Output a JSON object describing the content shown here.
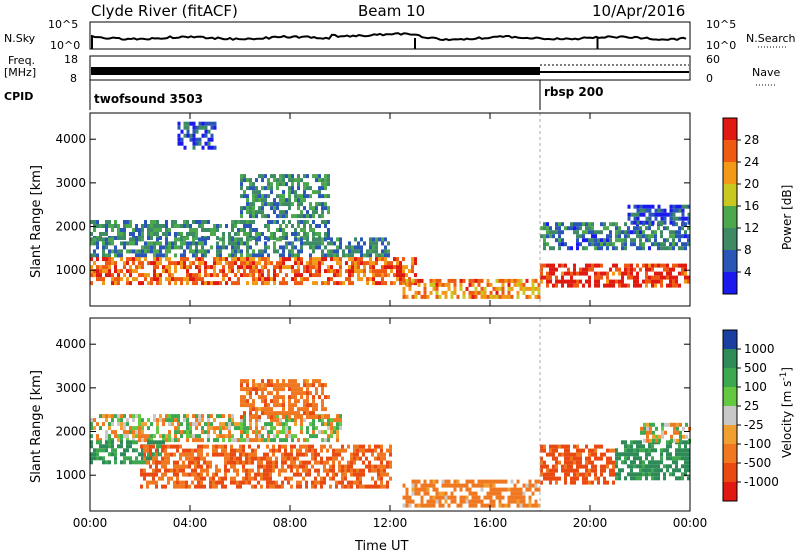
{
  "header": {
    "station": "Clyde River (fitACF)",
    "beam": "Beam 10",
    "date": "10/Apr/2016"
  },
  "top_panels": {
    "nsky_label": "N.Sky",
    "nsky_ticks": [
      "10^5",
      "10^0"
    ],
    "nsky_right_ticks": [
      "10^5",
      "10^0"
    ],
    "nsearch_label": "N.Search",
    "freq_label_line1": "Freq.",
    "freq_label_line2": "[MHz]",
    "freq_ticks": [
      "18",
      "8"
    ],
    "nave_ticks": [
      "60",
      "0"
    ],
    "nave_label": "Nave",
    "cpid_label": "CPID",
    "cpid_programs": [
      {
        "name": "twofsound 3503",
        "start_hour": 0
      },
      {
        "name": "rbsp 200",
        "start_hour": 18
      }
    ]
  },
  "colors": {
    "power_scale": [
      "#1a1aee",
      "#2a56b8",
      "#3d8a64",
      "#4ca84c",
      "#c8c820",
      "#f29a18",
      "#ee5a12",
      "#e01a10"
    ],
    "velocity_scale": [
      "#1b3fa0",
      "#2e8a56",
      "#3ea850",
      "#64c840",
      "#c8c8c8",
      "#f0a030",
      "#f07820",
      "#e84a12",
      "#e01a10"
    ]
  },
  "chart_data": [
    {
      "type": "heatmap",
      "panel": "power",
      "ylabel": "Slant Range [km]",
      "xlabel": "",
      "yticks": [
        1000,
        2000,
        3000,
        4000
      ],
      "xticks": [
        "00:00",
        "04:00",
        "08:00",
        "12:00",
        "16:00",
        "20:00",
        "00:00"
      ],
      "xlim_hours": [
        0,
        24
      ],
      "ylim": [
        180,
        4600
      ],
      "colorbar": {
        "label": "Power [dB]",
        "ticks": [
          "4",
          "8",
          "12",
          "16",
          "20",
          "24",
          "28"
        ],
        "range": [
          0,
          30
        ]
      },
      "bands": [
        {
          "t0": 0,
          "t1": 9.5,
          "r0": 1750,
          "r1": 2150,
          "value": 10
        },
        {
          "t0": 0,
          "t1": 12,
          "r0": 1300,
          "r1": 1750,
          "value": 9
        },
        {
          "t0": 0,
          "t1": 13,
          "r0": 700,
          "r1": 1300,
          "value": 24
        },
        {
          "t0": 12.5,
          "t1": 18,
          "r0": 400,
          "r1": 800,
          "value": 22
        },
        {
          "t0": 18,
          "t1": 24,
          "r0": 650,
          "r1": 1150,
          "value": 27
        },
        {
          "t0": 18,
          "t1": 24,
          "r0": 1550,
          "r1": 2100,
          "value": 8
        },
        {
          "t0": 21.5,
          "t1": 24,
          "r0": 2100,
          "r1": 2500,
          "value": 6
        },
        {
          "t0": 6,
          "t1": 9.5,
          "r0": 2250,
          "r1": 3200,
          "value": 10
        },
        {
          "t0": 3.5,
          "t1": 5,
          "r0": 3800,
          "r1": 4400,
          "value": 5
        }
      ]
    },
    {
      "type": "heatmap",
      "panel": "velocity",
      "ylabel": "Slant Range [km]",
      "xlabel": "Time UT",
      "yticks": [
        1000,
        2000,
        3000,
        4000
      ],
      "xticks": [
        "00:00",
        "04:00",
        "08:00",
        "12:00",
        "16:00",
        "20:00",
        "00:00"
      ],
      "xlim_hours": [
        0,
        24
      ],
      "ylim": [
        180,
        4600
      ],
      "colorbar": {
        "label": "Velocity [m s^-1]",
        "ticks": [
          "1000",
          "500",
          "100",
          "25",
          "-25",
          "-100",
          "-500",
          "-1000"
        ]
      },
      "bands": [
        {
          "t0": 0,
          "t1": 10,
          "r0": 1800,
          "r1": 2400,
          "value": 0
        },
        {
          "t0": 0,
          "t1": 3,
          "r0": 1300,
          "r1": 1800,
          "value": 300
        },
        {
          "t0": 2,
          "t1": 12,
          "r0": 700,
          "r1": 1700,
          "value": -300
        },
        {
          "t0": 12.5,
          "t1": 18,
          "r0": 350,
          "r1": 900,
          "value": -150
        },
        {
          "t0": 18,
          "t1": 21,
          "r0": 800,
          "r1": 1700,
          "value": -400
        },
        {
          "t0": 21,
          "t1": 24,
          "r0": 900,
          "r1": 1800,
          "value": 400
        },
        {
          "t0": 22,
          "t1": 24,
          "r0": 1800,
          "r1": 2200,
          "value": 0
        },
        {
          "t0": 6,
          "t1": 9.5,
          "r0": 2300,
          "r1": 3200,
          "value": -200
        }
      ]
    }
  ]
}
